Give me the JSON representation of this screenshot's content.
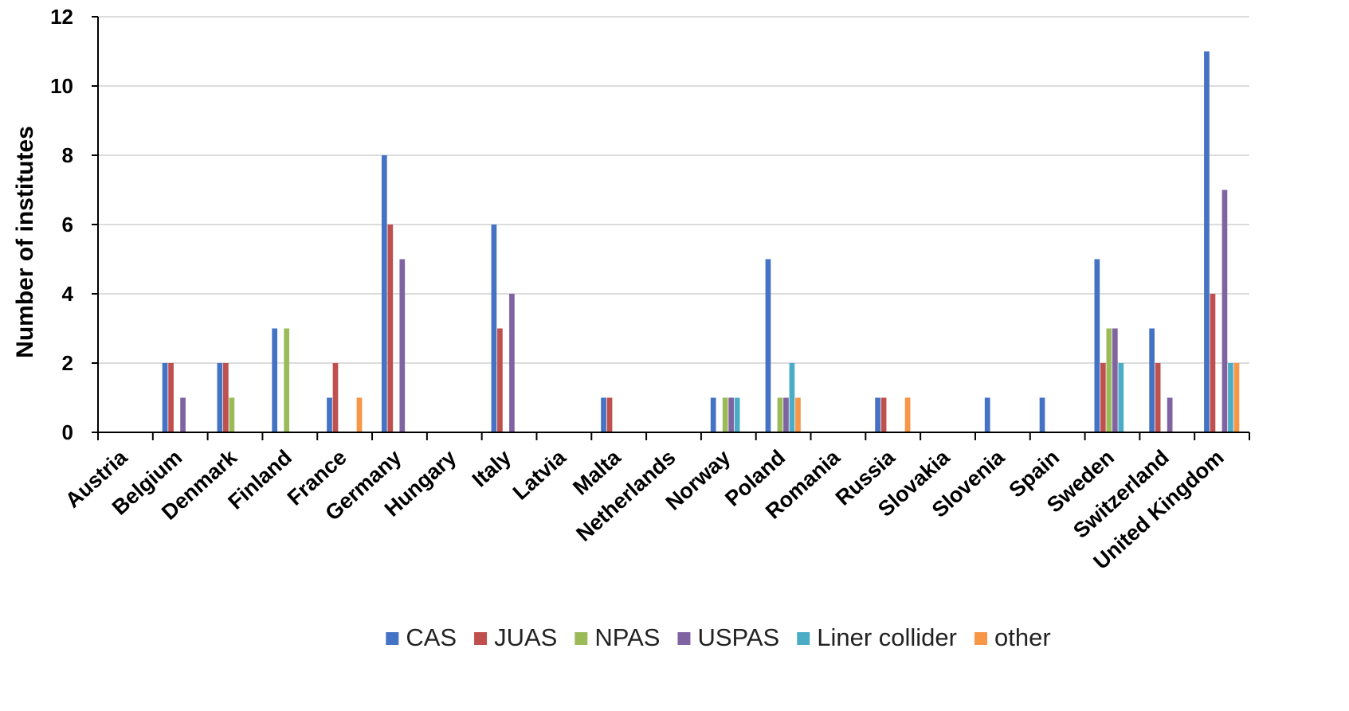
{
  "chart_data": {
    "type": "bar",
    "title": "",
    "xlabel": "",
    "ylabel": "Number of   institutes",
    "ylim": [
      0,
      12
    ],
    "yticks": [
      0,
      2,
      4,
      6,
      8,
      10,
      12
    ],
    "grid": true,
    "legend_position": "bottom",
    "categories": [
      "Austria",
      "Belgium",
      "Denmark",
      "Finland",
      "France",
      "Germany",
      "Hungary",
      "Italy",
      "Latvia",
      "Malta",
      "Netherlands",
      "Norway",
      "Poland",
      "Romania",
      "Russia",
      "Slovakia",
      "Slovenia",
      "Spain",
      "Sweden",
      "Switzerland",
      "United Kingdom"
    ],
    "series": [
      {
        "name": "CAS",
        "color": "#4472C4",
        "values": [
          0,
          2,
          2,
          3,
          1,
          8,
          0,
          6,
          0,
          1,
          0,
          1,
          5,
          0,
          1,
          0,
          1,
          1,
          5,
          3,
          11
        ]
      },
      {
        "name": "JUAS",
        "color": "#C0504D",
        "values": [
          0,
          2,
          2,
          0,
          2,
          6,
          0,
          3,
          0,
          1,
          0,
          0,
          0,
          0,
          1,
          0,
          0,
          0,
          2,
          2,
          4
        ]
      },
      {
        "name": "NPAS",
        "color": "#9BBB59",
        "values": [
          0,
          0,
          1,
          3,
          0,
          0,
          0,
          0,
          0,
          0,
          0,
          1,
          1,
          0,
          0,
          0,
          0,
          0,
          3,
          0,
          0
        ]
      },
      {
        "name": "USPAS",
        "color": "#8064A2",
        "values": [
          0,
          1,
          0,
          0,
          0,
          5,
          0,
          4,
          0,
          0,
          0,
          1,
          1,
          0,
          0,
          0,
          0,
          0,
          3,
          1,
          7
        ]
      },
      {
        "name": "Liner collider",
        "color": "#4BACC6",
        "values": [
          0,
          0,
          0,
          0,
          0,
          0,
          0,
          0,
          0,
          0,
          0,
          1,
          2,
          0,
          0,
          0,
          0,
          0,
          2,
          0,
          2
        ]
      },
      {
        "name": "other",
        "color": "#F79646",
        "values": [
          0,
          0,
          0,
          0,
          1,
          0,
          0,
          0,
          0,
          0,
          0,
          0,
          1,
          0,
          1,
          0,
          0,
          0,
          0,
          0,
          2
        ]
      }
    ]
  }
}
